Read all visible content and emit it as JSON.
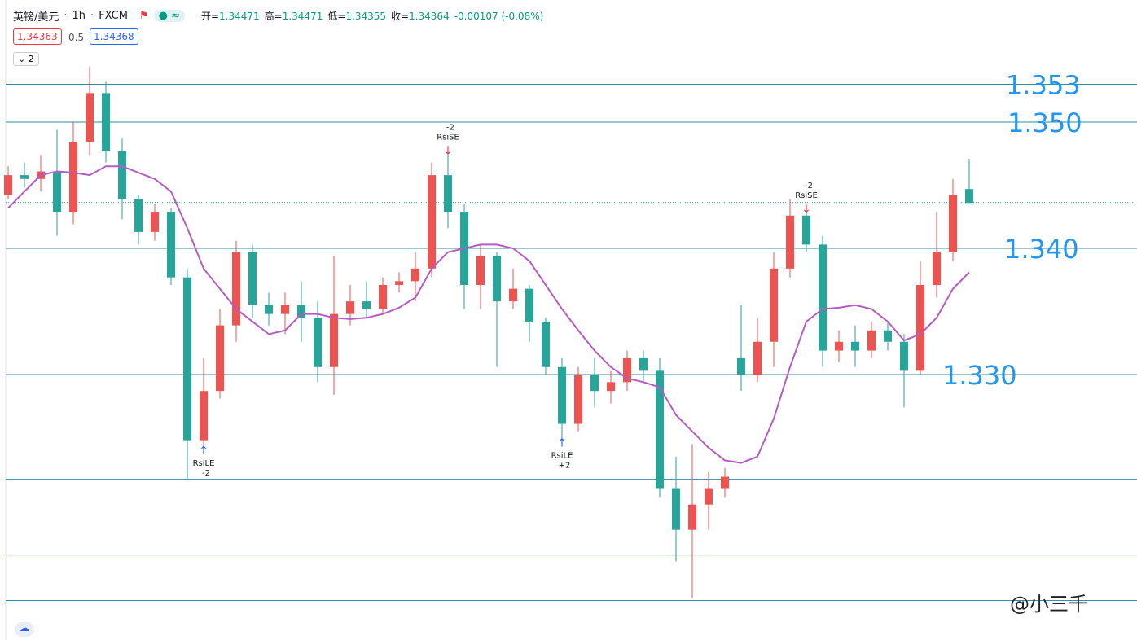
{
  "chart_data": {
    "type": "candlestick",
    "symbol": "英镑/美元",
    "interval": "1h",
    "source": "FXCM",
    "ohlc": [
      {
        "label": "开=",
        "value": 1.34471
      },
      {
        "label": "高=",
        "value": 1.34471
      },
      {
        "label": "低=",
        "value": 1.34355
      },
      {
        "label": "收=",
        "value": 1.34364
      }
    ],
    "change": "-0.00107 (-0.08%)",
    "bid": 1.34363,
    "spread": 0.5,
    "ask": 1.34368,
    "indicator_count": 2,
    "up_color": "#ef5350",
    "down_color": "#26a69a",
    "ma_color": "#b75bc4",
    "level_color": "#2a8fa6",
    "ylim": [
      1.30897,
      1.35968
    ],
    "levels": [
      1.353,
      {
        "value": 1.35,
        "label": "1.350"
      },
      {
        "value": 1.34,
        "label": "1.340"
      },
      {
        "value": 1.33,
        "label": "1.330"
      }
    ],
    "lines": [
      1.3217,
      1.3157,
      1.3121
    ],
    "candles": [
      [
        1.3442,
        1.3465,
        1.3439,
        1.3458
      ],
      [
        1.3458,
        1.3468,
        1.3448,
        1.3455
      ],
      [
        1.3455,
        1.3474,
        1.3445,
        1.3461
      ],
      [
        1.3461,
        1.3494,
        1.341,
        1.3429
      ],
      [
        1.3429,
        1.35,
        1.3419,
        1.3484
      ],
      [
        1.3484,
        1.3544,
        1.3474,
        1.3523
      ],
      [
        1.3523,
        1.3532,
        1.3468,
        1.3477
      ],
      [
        1.3477,
        1.3487,
        1.3423,
        1.3439
      ],
      [
        1.3439,
        1.3442,
        1.3403,
        1.3413
      ],
      [
        1.3413,
        1.3435,
        1.3406,
        1.3429
      ],
      [
        1.3429,
        1.3432,
        1.3371,
        1.3377
      ],
      [
        1.3377,
        1.3384,
        1.3216,
        1.3248
      ],
      [
        1.3248,
        1.3313,
        1.3242,
        1.3287
      ],
      [
        1.3287,
        1.3352,
        1.3281,
        1.3339
      ],
      [
        1.3339,
        1.3406,
        1.3326,
        1.3397
      ],
      [
        1.3397,
        1.3403,
        1.3345,
        1.3355
      ],
      [
        1.3355,
        1.3365,
        1.3339,
        1.3348
      ],
      [
        1.3348,
        1.3365,
        1.3332,
        1.3355
      ],
      [
        1.3355,
        1.3374,
        1.3326,
        1.3345
      ],
      [
        1.3345,
        1.3358,
        1.3294,
        1.3306
      ],
      [
        1.3306,
        1.3394,
        1.3284,
        1.3348
      ],
      [
        1.3348,
        1.3371,
        1.3339,
        1.3358
      ],
      [
        1.3358,
        1.3374,
        1.3345,
        1.3352
      ],
      [
        1.3352,
        1.3377,
        1.3348,
        1.3371
      ],
      [
        1.3371,
        1.3381,
        1.3365,
        1.3374
      ],
      [
        1.3374,
        1.3397,
        1.3358,
        1.3384
      ],
      [
        1.3384,
        1.3468,
        1.3377,
        1.3458
      ],
      [
        1.3458,
        1.3481,
        1.3416,
        1.3429
      ],
      [
        1.3429,
        1.3435,
        1.3352,
        1.3371
      ],
      [
        1.3371,
        1.3403,
        1.3352,
        1.3394
      ],
      [
        1.3394,
        1.3397,
        1.3306,
        1.3358
      ],
      [
        1.3358,
        1.3384,
        1.3352,
        1.3368
      ],
      [
        1.3368,
        1.3371,
        1.3326,
        1.3342
      ],
      [
        1.3342,
        1.3345,
        1.33,
        1.3306
      ],
      [
        1.3306,
        1.3313,
        1.3248,
        1.3261
      ],
      [
        1.3261,
        1.3306,
        1.3255,
        1.33
      ],
      [
        1.33,
        1.3313,
        1.3274,
        1.3287
      ],
      [
        1.3287,
        1.3303,
        1.3277,
        1.3294
      ],
      [
        1.3294,
        1.3319,
        1.3287,
        1.3313
      ],
      [
        1.3313,
        1.3319,
        1.3294,
        1.3303
      ],
      [
        1.3303,
        1.3313,
        1.3203,
        1.321
      ],
      [
        1.321,
        1.3235,
        1.3152,
        1.3177
      ],
      [
        1.3177,
        1.3245,
        1.3123,
        1.3197
      ],
      [
        1.3197,
        1.3223,
        1.3177,
        1.321
      ],
      [
        1.321,
        1.3226,
        1.3203,
        1.3219
      ],
      [
        1.3313,
        1.3355,
        1.3287,
        1.33
      ],
      [
        1.33,
        1.3345,
        1.3294,
        1.3326
      ],
      [
        1.3326,
        1.3397,
        1.3306,
        1.3384
      ],
      [
        1.3384,
        1.3439,
        1.3377,
        1.3426
      ],
      [
        1.3426,
        1.3435,
        1.3397,
        1.3403
      ],
      [
        1.3403,
        1.341,
        1.3306,
        1.3319
      ],
      [
        1.3319,
        1.3335,
        1.331,
        1.3326
      ],
      [
        1.3326,
        1.3339,
        1.3306,
        1.3319
      ],
      [
        1.3319,
        1.3342,
        1.3313,
        1.3335
      ],
      [
        1.3335,
        1.3342,
        1.3319,
        1.3326
      ],
      [
        1.3326,
        1.3332,
        1.3274,
        1.3303
      ],
      [
        1.3303,
        1.339,
        1.33,
        1.3371
      ],
      [
        1.3371,
        1.3429,
        1.3361,
        1.3397
      ],
      [
        1.3397,
        1.3455,
        1.339,
        1.3442
      ],
      [
        1.3447,
        1.3471,
        1.3436,
        1.3436
      ]
    ],
    "ma": [
      1.3432,
      1.3445,
      1.3458,
      1.3461,
      1.346,
      1.3458,
      1.3465,
      1.3465,
      1.346,
      1.3455,
      1.3445,
      1.3416,
      1.3384,
      1.3368,
      1.3352,
      1.3342,
      1.3332,
      1.3335,
      1.3348,
      1.3348,
      1.3345,
      1.3344,
      1.3345,
      1.3348,
      1.3353,
      1.3361,
      1.3384,
      1.3397,
      1.34,
      1.3403,
      1.3403,
      1.34,
      1.339,
      1.3371,
      1.3352,
      1.3335,
      1.3319,
      1.3306,
      1.3297,
      1.3294,
      1.329,
      1.3268,
      1.3255,
      1.3242,
      1.3232,
      1.323,
      1.3235,
      1.3265,
      1.3306,
      1.3342,
      1.3352,
      1.3353,
      1.3355,
      1.3352,
      1.3342,
      1.3327,
      1.3332,
      1.3345,
      1.3368,
      1.3381
    ],
    "signals": [
      {
        "index": 12,
        "text": "RsiLE",
        "qty": "-2",
        "side": "long"
      },
      {
        "index": 34,
        "text": "RsiLE",
        "qty": "+2",
        "side": "long"
      },
      {
        "index": 27,
        "text": "RsiSE",
        "qty": "-2",
        "side": "short"
      },
      {
        "index": 49,
        "text": "RsiSE",
        "qty": "-2",
        "side": "short"
      }
    ],
    "watermark": "@小三千"
  }
}
